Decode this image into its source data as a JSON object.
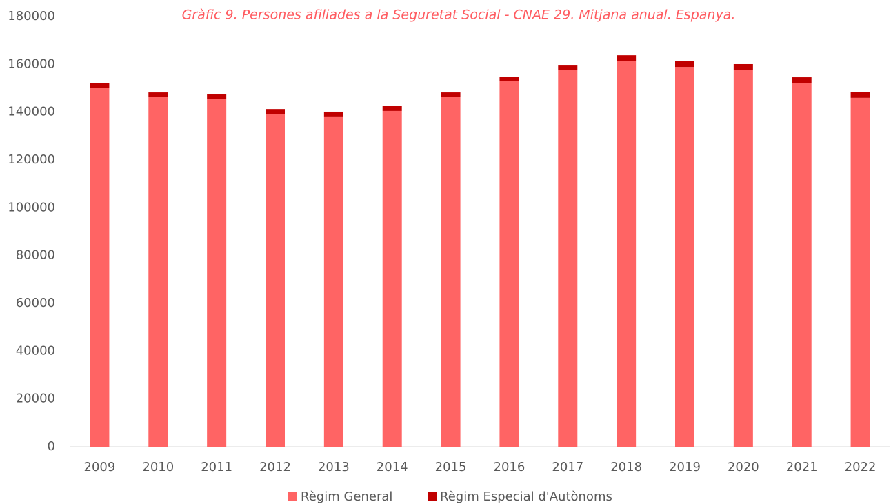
{
  "chart_data": {
    "type": "stacked_bar",
    "title": "Gràfic 9. Persones afiliades a la Seguretat Social - CNAE 29. Mitjana anual. Espanya.",
    "categories": [
      "2009",
      "2010",
      "2011",
      "2012",
      "2013",
      "2014",
      "2015",
      "2016",
      "2017",
      "2018",
      "2019",
      "2020",
      "2021",
      "2022"
    ],
    "series": [
      {
        "name": "Règim General",
        "color": "#ff6464",
        "values": [
          150000,
          146250,
          145400,
          139300,
          138200,
          140500,
          146250,
          152900,
          157500,
          161300,
          158900,
          157500,
          152300,
          146000
        ]
      },
      {
        "name": "Règim Especial d'Autònoms",
        "color": "#c00000",
        "values": [
          2300,
          2000,
          2000,
          2000,
          2000,
          2000,
          2000,
          2000,
          2000,
          2500,
          2600,
          2600,
          2300,
          2500
        ]
      }
    ],
    "ylim": [
      0,
      180000
    ],
    "yticks": [
      0,
      20000,
      40000,
      60000,
      80000,
      100000,
      120000,
      140000,
      160000,
      180000
    ],
    "legend": "bottom"
  }
}
